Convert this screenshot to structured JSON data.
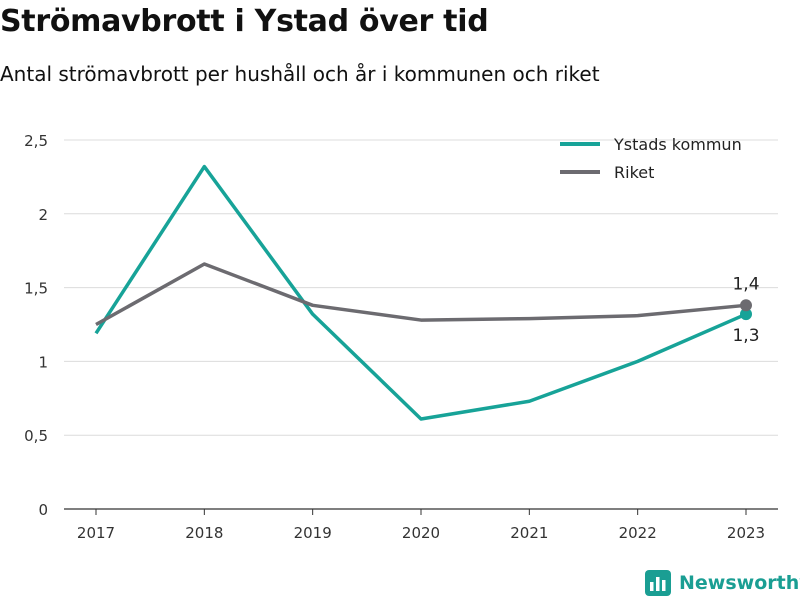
{
  "header": {
    "title": "Strömavbrott i Ystad över tid",
    "subtitle": "Antal strömavbrott per hushåll och år i kommunen och riket"
  },
  "brand": {
    "name": "Newsworthy",
    "icon": "newsworthy-logo-icon",
    "color": "#1a9e93"
  },
  "chart_data": {
    "type": "line",
    "x": [
      "2017",
      "2018",
      "2019",
      "2020",
      "2021",
      "2022",
      "2023"
    ],
    "ylim": [
      0,
      2.5
    ],
    "yticks": [
      0,
      0.5,
      1,
      1.5,
      2,
      2.5
    ],
    "ytick_labels": [
      "0",
      "0,5",
      "1",
      "1,5",
      "2",
      "2,5"
    ],
    "grid": true,
    "legend_position": "top-right",
    "series": [
      {
        "name": "Ystads kommun",
        "color": "#17a398",
        "values": [
          1.19,
          2.32,
          1.32,
          0.61,
          0.73,
          1.0,
          1.32
        ],
        "end_label": "1,3",
        "end_label_position": "below"
      },
      {
        "name": "Riket",
        "color": "#6c6b70",
        "values": [
          1.25,
          1.66,
          1.38,
          1.28,
          1.29,
          1.31,
          1.38
        ],
        "end_label": "1,4",
        "end_label_position": "above"
      }
    ]
  }
}
